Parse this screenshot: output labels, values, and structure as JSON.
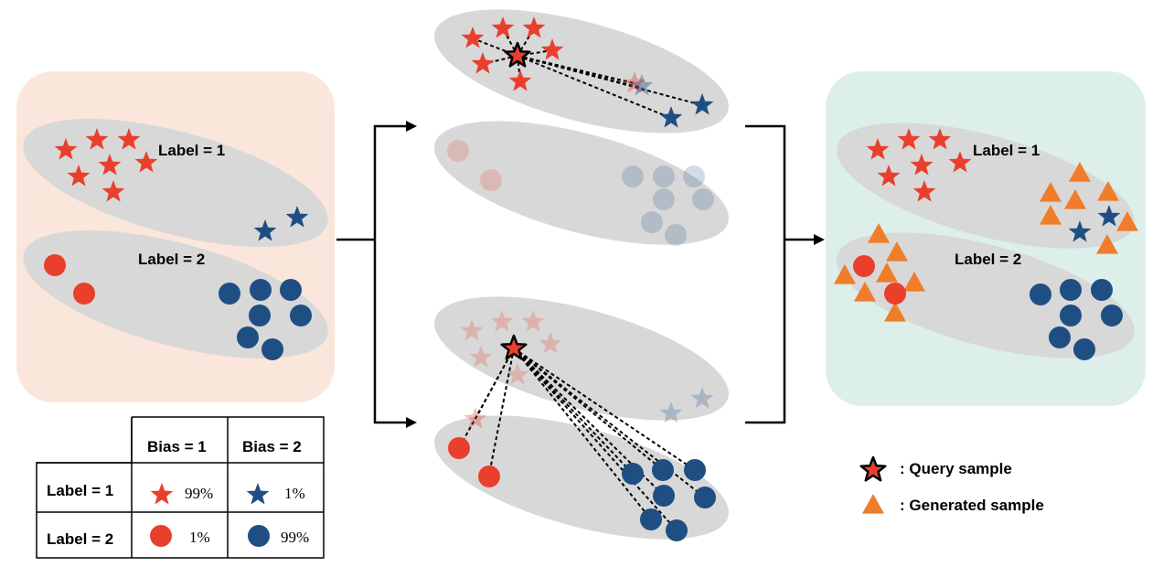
{
  "colors": {
    "red": "#e8402d",
    "blue": "#1f4e83",
    "orange": "#ef7d2a",
    "ellipse": "#d8d8d8",
    "left_panel_bg": "#fbe6dc",
    "right_panel_bg": "#dcefea"
  },
  "left_panel": {
    "label_1": "Label = 1",
    "label_2": "Label = 2"
  },
  "right_panel": {
    "label_1": "Label = 1",
    "label_2": "Label = 2"
  },
  "bias_table": {
    "col_headers": [
      "Bias = 1",
      "Bias = 2"
    ],
    "rows": [
      {
        "label": "Label = 1",
        "cells": [
          {
            "icon": "red-star-icon",
            "value": "99%"
          },
          {
            "icon": "blue-star-icon",
            "value": "1%"
          }
        ]
      },
      {
        "label": "Label = 2",
        "cells": [
          {
            "icon": "red-circle-icon",
            "value": "1%"
          },
          {
            "icon": "blue-circle-icon",
            "value": "99%"
          }
        ]
      }
    ]
  },
  "legend": {
    "query": "Query sample",
    "generated": "Generated sample",
    "query_prefix": ": ",
    "generated_prefix": ": "
  }
}
